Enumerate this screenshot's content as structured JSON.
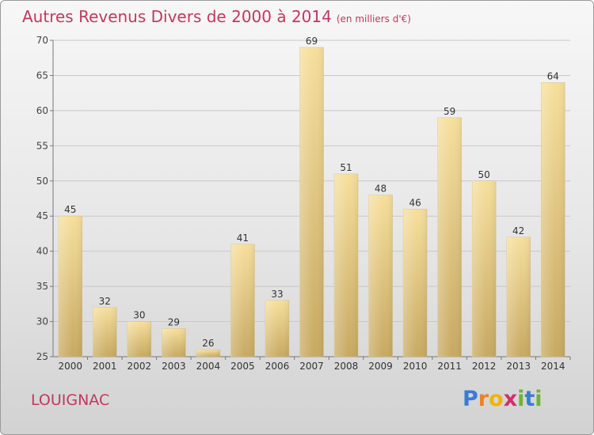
{
  "title": "Autres Revenus Divers de 2000 à 2014",
  "subtitle": "(en milliers d'€)",
  "commune": "LOUIGNAC",
  "logo": {
    "letters": [
      "P",
      "r",
      "o",
      "x",
      "i",
      "t",
      "i"
    ],
    "colors": [
      "#3a7bd5",
      "#e8832a",
      "#f0b400",
      "#d12f6a",
      "#6fb23a",
      "#3a7bd5",
      "#6fb23a"
    ]
  },
  "chart_data": {
    "type": "bar",
    "categories": [
      "2000",
      "2001",
      "2002",
      "2003",
      "2004",
      "2005",
      "2006",
      "2007",
      "2008",
      "2009",
      "2010",
      "2011",
      "2012",
      "2013",
      "2014"
    ],
    "values": [
      45,
      32,
      30,
      29,
      26,
      41,
      33,
      69,
      51,
      48,
      46,
      59,
      50,
      42,
      64
    ],
    "title": "Autres Revenus Divers de 2000 à 2014",
    "ylim": [
      25,
      70
    ],
    "yticks": [
      25,
      30,
      35,
      40,
      45,
      50,
      55,
      60,
      65,
      70
    ],
    "grid": true
  }
}
